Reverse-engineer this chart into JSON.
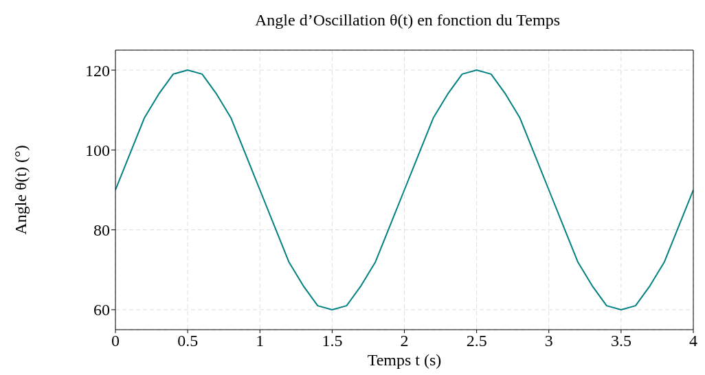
{
  "chart_data": {
    "type": "line",
    "title": "Angle d’Oscillation θ(t) en fonction du Temps",
    "xlabel": "Temps t (s)",
    "ylabel": "Angle θ(t) (°)",
    "x": [
      0,
      0.1,
      0.2,
      0.3,
      0.4,
      0.5,
      0.6,
      0.7,
      0.8,
      0.9,
      1,
      1.1,
      1.2,
      1.3,
      1.4,
      1.5,
      1.6,
      1.7,
      1.8,
      1.9,
      2,
      2.1,
      2.2,
      2.3,
      2.4,
      2.5,
      2.6,
      2.7,
      2.8,
      2.9,
      3,
      3.1,
      3.2,
      3.3,
      3.4,
      3.5,
      3.6,
      3.7,
      3.8,
      3.9,
      4
    ],
    "series": [
      {
        "color": "#008080",
        "values": [
          90,
          99,
          108,
          114,
          119,
          120,
          119,
          114,
          108,
          99,
          90,
          81,
          72,
          66,
          61,
          60,
          61,
          66,
          72,
          81,
          90,
          99,
          108,
          114,
          119,
          120,
          119,
          114,
          108,
          99,
          90,
          81,
          72,
          66,
          61,
          60,
          61,
          66,
          72,
          81,
          90
        ]
      }
    ],
    "xlim": [
      0,
      4
    ],
    "xticks": [
      0,
      0.5,
      1,
      1.5,
      2,
      2.5,
      3,
      3.5,
      4
    ],
    "ylim": [
      55,
      125
    ],
    "yticks": [
      60,
      80,
      100,
      120
    ],
    "grid": true,
    "marker": "none",
    "line_style": "solid",
    "legend": false
  }
}
